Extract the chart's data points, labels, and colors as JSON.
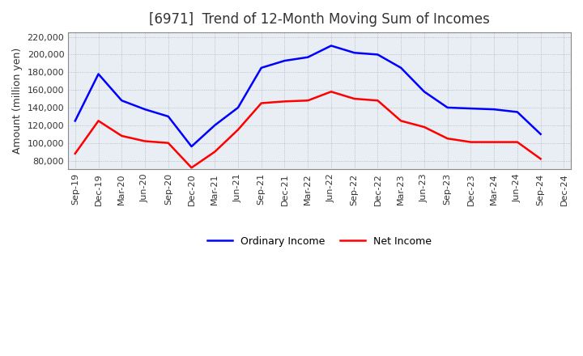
{
  "title": "[6971]  Trend of 12-Month Moving Sum of Incomes",
  "ylabel": "Amount (million yen)",
  "x_labels": [
    "Sep-19",
    "Dec-19",
    "Mar-20",
    "Jun-20",
    "Sep-20",
    "Dec-20",
    "Mar-21",
    "Jun-21",
    "Sep-21",
    "Dec-21",
    "Mar-22",
    "Jun-22",
    "Sep-22",
    "Dec-22",
    "Mar-23",
    "Jun-23",
    "Sep-23",
    "Dec-23",
    "Mar-24",
    "Jun-24",
    "Sep-24",
    "Dec-24"
  ],
  "ordinary_income": [
    125000,
    178000,
    148000,
    138000,
    130000,
    96000,
    120000,
    140000,
    185000,
    193000,
    197000,
    210000,
    202000,
    200000,
    185000,
    158000,
    140000,
    139000,
    138000,
    135000,
    110000,
    null
  ],
  "net_income": [
    88000,
    125000,
    108000,
    102000,
    100000,
    72000,
    90000,
    115000,
    145000,
    147000,
    148000,
    158000,
    150000,
    148000,
    125000,
    118000,
    105000,
    101000,
    101000,
    101000,
    82000,
    null
  ],
  "ordinary_color": "#0000FF",
  "net_color": "#FF0000",
  "ylim_min": 70000,
  "ylim_max": 225000,
  "yticks": [
    80000,
    100000,
    120000,
    140000,
    160000,
    180000,
    200000,
    220000
  ],
  "plot_bg_color": "#E8EEF4",
  "fig_bg_color": "#FFFFFF",
  "grid_color": "#888888",
  "legend_ordinary": "Ordinary Income",
  "legend_net": "Net Income",
  "title_fontsize": 12,
  "axis_fontsize": 9,
  "tick_fontsize": 8,
  "legend_fontsize": 9,
  "line_width": 1.8
}
